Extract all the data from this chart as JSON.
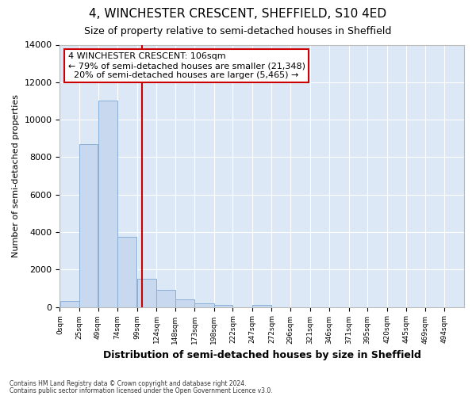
{
  "title": "4, WINCHESTER CRESCENT, SHEFFIELD, S10 4ED",
  "subtitle": "Size of property relative to semi-detached houses in Sheffield",
  "xlabel": "Distribution of semi-detached houses by size in Sheffield",
  "ylabel": "Number of semi-detached properties",
  "property_label": "4 WINCHESTER CRESCENT: 106sqm",
  "pct_smaller": 79,
  "n_smaller": "21,348",
  "pct_larger": 20,
  "n_larger": "5,465",
  "footnote1": "Contains HM Land Registry data © Crown copyright and database right 2024.",
  "footnote2": "Contains public sector information licensed under the Open Government Licence v3.0.",
  "bin_labels": [
    "0sqm",
    "25sqm",
    "49sqm",
    "74sqm",
    "99sqm",
    "124sqm",
    "148sqm",
    "173sqm",
    "198sqm",
    "222sqm",
    "247sqm",
    "272sqm",
    "296sqm",
    "321sqm",
    "346sqm",
    "371sqm",
    "395sqm",
    "420sqm",
    "445sqm",
    "469sqm",
    "494sqm"
  ],
  "bin_edges": [
    0,
    25,
    49,
    74,
    99,
    124,
    148,
    173,
    198,
    222,
    247,
    272,
    296,
    321,
    346,
    371,
    395,
    420,
    445,
    469,
    494,
    519
  ],
  "bar_heights": [
    300,
    8700,
    11000,
    3750,
    1500,
    900,
    400,
    175,
    100,
    0,
    100,
    0,
    0,
    0,
    0,
    0,
    0,
    0,
    0,
    0,
    0
  ],
  "bar_color": "#c8d8ee",
  "bar_edge_color": "#8ab0d8",
  "vline_x": 106,
  "vline_color": "#cc0000",
  "ylim": [
    0,
    14000
  ],
  "yticks": [
    0,
    2000,
    4000,
    6000,
    8000,
    10000,
    12000,
    14000
  ],
  "fig_bg_color": "#ffffff",
  "plot_bg_color": "#dce8f5",
  "grid_color": "#ffffff",
  "title_fontsize": 11,
  "subtitle_fontsize": 9,
  "ann_fontsize": 8,
  "xlabel_fontsize": 9,
  "ylabel_fontsize": 8,
  "annotation_box_color": "#ffffff",
  "annotation_box_edge": "#cc0000"
}
